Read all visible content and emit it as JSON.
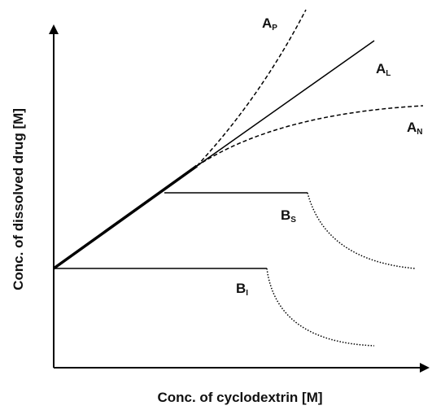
{
  "axes": {
    "x_label": "Conc. of cyclodextrin [M]",
    "y_label": "Conc. of dissolved drug [M]"
  },
  "curves": [
    {
      "label": "A",
      "subscript": "P"
    },
    {
      "label": "A",
      "subscript": "L"
    },
    {
      "label": "A",
      "subscript": "N"
    },
    {
      "label": "B",
      "subscript": "S"
    },
    {
      "label": "B",
      "subscript": "I"
    }
  ]
}
